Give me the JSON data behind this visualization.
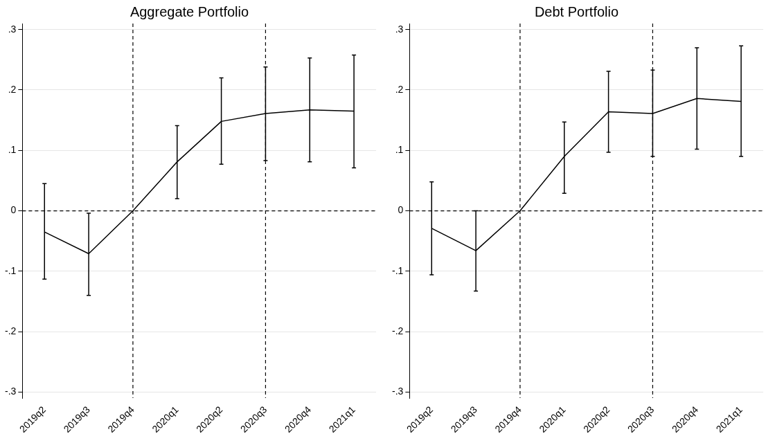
{
  "chart_data": [
    {
      "type": "line",
      "title": "Aggregate Portfolio",
      "categories": [
        "2019q2",
        "2019q3",
        "2019q4",
        "2020q1",
        "2020q2",
        "2020q3",
        "2020q4",
        "2021q1"
      ],
      "series": [
        {
          "color": "#000000",
          "values": [
            -0.035,
            -0.071,
            0,
            0.081,
            0.148,
            0.161,
            0.167,
            0.165
          ],
          "errors": [
            [
              -0.113,
              0.045
            ],
            [
              -0.14,
              -0.004
            ],
            null,
            [
              0.02,
              0.141
            ],
            [
              0.077,
              0.22
            ],
            [
              0.083,
              0.238
            ],
            [
              0.081,
              0.253
            ],
            [
              0.071,
              0.258
            ]
          ]
        }
      ],
      "ylim": [
        -0.31,
        0.31
      ],
      "yticks": [
        {
          "value": -0.3,
          "label": "-.3"
        },
        {
          "value": -0.2,
          "label": "-.2"
        },
        {
          "value": -0.1,
          "label": "-.1"
        },
        0,
        {
          "value": 0.1,
          "label": ".1"
        },
        {
          "value": 0.2,
          "label": ".2"
        },
        {
          "value": 0.3,
          "label": ".3"
        }
      ],
      "grid": "y",
      "legend": false,
      "marker": "none",
      "line_style": "solid",
      "ref_lines": [
        {
          "axis": "y",
          "value": 0,
          "line_style": "dashed",
          "color": "#000000"
        },
        {
          "axis": "x",
          "value": "2019q4",
          "line_style": "dashed",
          "color": "#000000"
        },
        {
          "axis": "x",
          "value": "2020q3",
          "line_style": "dashed",
          "color": "#000000"
        }
      ]
    },
    {
      "type": "line",
      "title": "Debt Portfolio",
      "categories": [
        "2019q2",
        "2019q3",
        "2019q4",
        "2020q1",
        "2020q2",
        "2020q3",
        "2020q4",
        "2021q1"
      ],
      "series": [
        {
          "color": "#000000",
          "values": [
            -0.029,
            -0.066,
            0,
            0.09,
            0.164,
            0.161,
            0.186,
            0.181
          ],
          "errors": [
            [
              -0.106,
              0.048
            ],
            [
              -0.133,
              0
            ],
            null,
            [
              0.029,
              0.147
            ],
            [
              0.097,
              0.231
            ],
            [
              0.09,
              0.233
            ],
            [
              0.102,
              0.27
            ],
            [
              0.09,
              0.273
            ]
          ]
        }
      ],
      "ylim": [
        -0.31,
        0.31
      ],
      "yticks": [
        {
          "value": -0.3,
          "label": "-.3"
        },
        {
          "value": -0.2,
          "label": "-.2"
        },
        {
          "value": -0.1,
          "label": "-.1"
        },
        0,
        {
          "value": 0.1,
          "label": ".1"
        },
        {
          "value": 0.2,
          "label": ".2"
        },
        {
          "value": 0.3,
          "label": ".3"
        }
      ],
      "grid": "y",
      "legend": false,
      "marker": "none",
      "line_style": "solid",
      "ref_lines": [
        {
          "axis": "y",
          "value": 0,
          "line_style": "dashed",
          "color": "#000000"
        },
        {
          "axis": "x",
          "value": "2019q4",
          "line_style": "dashed",
          "color": "#000000"
        },
        {
          "axis": "x",
          "value": "2020q3",
          "line_style": "dashed",
          "color": "#000000"
        }
      ]
    }
  ]
}
